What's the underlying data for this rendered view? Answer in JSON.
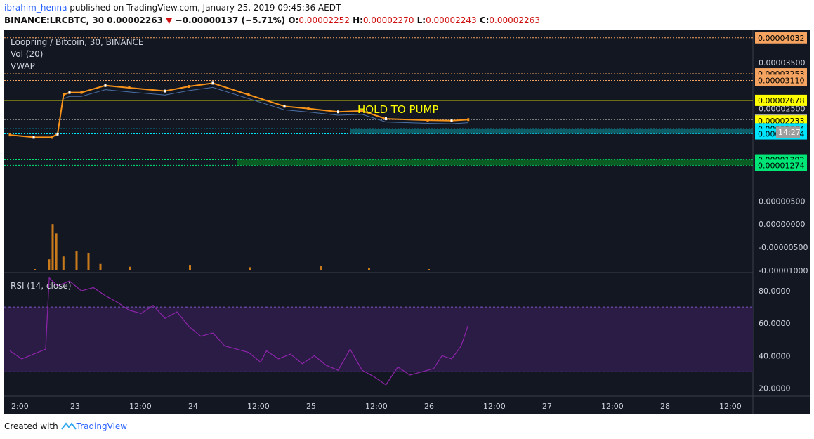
{
  "header": {
    "author": "ibrahim_henna",
    "published_text": "published on TradingView.com, January 25, 2019 09:45:36 AEDT",
    "symbol": "BINANCE:LRCBTC, 30",
    "last": "0.00002263",
    "change": "−0.00000137 (−5.71%)",
    "open_label": "O:",
    "open": "0.00002252",
    "high_label": "H:",
    "high": "0.00002270",
    "low_label": "L:",
    "low": "0.00002243",
    "close_label": "C:",
    "close": "0.00002263"
  },
  "legend": {
    "title": "Loopring / Bitcoin, 30, BINANCE",
    "volume": "Vol (20)",
    "vwap": "VWAP",
    "rsi": "RSI (14, close)"
  },
  "annotation": "HOLD TO PUMP",
  "countdown": "14:27",
  "footer": {
    "created_with": "Created with",
    "brand": "TradingView"
  },
  "colors": {
    "background": "#131722",
    "candle_up": "#ffffff",
    "candle_down": "#f7931a",
    "volume": "#f7931a",
    "vwap": "#4a6fa5",
    "rsi_line": "#8e24aa",
    "rsi_band": "#2a1c45",
    "resistance": "#c9a227",
    "support_blue": "#00bcd4",
    "support_green": "#00c853"
  },
  "chart_data": {
    "type": "candlestick",
    "x_ticks": [
      "2:00",
      "23",
      "12:00",
      "24",
      "12:00",
      "25",
      "12:00",
      "26",
      "12:00",
      "27",
      "12:00",
      "28",
      "12:00"
    ],
    "price_axis": {
      "ticks": [
        "0.00003500",
        "0.00002500",
        "0.00000500",
        "0.00000000",
        "-0.00000500",
        "-0.00001000"
      ],
      "tick_values": [
        3.5e-05,
        2.5e-05,
        5e-06,
        0.0,
        -5e-06,
        -1e-05
      ],
      "ylim": [
        -1e-05,
        4.15e-05
      ]
    },
    "levels": [
      {
        "label": "0.00004032",
        "value": 4.032e-05,
        "color": "#f4a460",
        "style": "dotted"
      },
      {
        "label": "0.00003253",
        "value": 3.253e-05,
        "color": "#f4a460",
        "style": "dotted"
      },
      {
        "label": "0.00003110",
        "value": 3.11e-05,
        "color": "#f4a460",
        "style": "dotted"
      },
      {
        "label": "0.00002678",
        "value": 2.678e-05,
        "color": "#ffff00",
        "style": "solid"
      },
      {
        "label": "0.00002263",
        "value": 2.263e-05,
        "color": "#9e9e9e",
        "style": "dotted"
      },
      {
        "label": "0.00002233",
        "value": 2.233e-05,
        "color": "#ffff00",
        "style": "none"
      },
      {
        "label": "0.00002064",
        "value": 2.064e-05,
        "color": "#00e5ff",
        "style": "dotted"
      },
      {
        "label": "0.00001954",
        "value": 1.954e-05,
        "color": "#00e5ff",
        "style": "dotted"
      },
      {
        "label": "0.00001392",
        "value": 1.392e-05,
        "color": "#00e676",
        "style": "dotted"
      },
      {
        "label": "0.00001274",
        "value": 1.274e-05,
        "color": "#00e676",
        "style": "dotted"
      }
    ],
    "price_series": [
      {
        "day": 22.0,
        "value": 1.93e-05
      },
      {
        "day": 22.2,
        "value": 1.88e-05
      },
      {
        "day": 22.35,
        "value": 1.88e-05
      },
      {
        "day": 22.4,
        "value": 1.95e-05
      },
      {
        "day": 22.45,
        "value": 2.8e-05
      },
      {
        "day": 22.5,
        "value": 2.85e-05
      },
      {
        "day": 22.6,
        "value": 2.85e-05
      },
      {
        "day": 22.8,
        "value": 3e-05
      },
      {
        "day": 23.0,
        "value": 2.95e-05
      },
      {
        "day": 23.3,
        "value": 2.88e-05
      },
      {
        "day": 23.5,
        "value": 2.98e-05
      },
      {
        "day": 23.7,
        "value": 3.05e-05
      },
      {
        "day": 24.0,
        "value": 2.8e-05
      },
      {
        "day": 24.3,
        "value": 2.55e-05
      },
      {
        "day": 24.5,
        "value": 2.5e-05
      },
      {
        "day": 24.75,
        "value": 2.43e-05
      },
      {
        "day": 24.95,
        "value": 2.45e-05
      },
      {
        "day": 25.15,
        "value": 2.28e-05
      },
      {
        "day": 25.5,
        "value": 2.25e-05
      },
      {
        "day": 25.7,
        "value": 2.24e-05
      },
      {
        "day": 25.84,
        "value": 2.263e-05
      }
    ],
    "volume_series": [
      {
        "day": 22.2,
        "value": 3e-07
      },
      {
        "day": 22.32,
        "value": 2.4e-06
      },
      {
        "day": 22.35,
        "value": 1e-05
      },
      {
        "day": 22.38,
        "value": 8e-06
      },
      {
        "day": 22.44,
        "value": 3e-06
      },
      {
        "day": 22.55,
        "value": 4.2e-06
      },
      {
        "day": 22.65,
        "value": 3.8e-06
      },
      {
        "day": 22.75,
        "value": 1.4e-06
      },
      {
        "day": 23.0,
        "value": 8e-07
      },
      {
        "day": 23.5,
        "value": 1.2e-06
      },
      {
        "day": 24.0,
        "value": 7e-07
      },
      {
        "day": 24.6,
        "value": 1e-06
      },
      {
        "day": 25.0,
        "value": 6e-07
      },
      {
        "day": 25.5,
        "value": 3e-07
      }
    ],
    "rsi_axis": {
      "ticks": [
        "80.0000",
        "60.0000",
        "40.0000",
        "20.0000"
      ],
      "tick_values": [
        80,
        60,
        40,
        20
      ],
      "ylim": [
        15,
        90
      ],
      "bands": [
        70,
        30
      ]
    },
    "rsi_series": [
      {
        "day": 22.0,
        "value": 43
      },
      {
        "day": 22.1,
        "value": 38
      },
      {
        "day": 22.2,
        "value": 41
      },
      {
        "day": 22.3,
        "value": 44
      },
      {
        "day": 22.33,
        "value": 88
      },
      {
        "day": 22.4,
        "value": 83
      },
      {
        "day": 22.5,
        "value": 86
      },
      {
        "day": 22.6,
        "value": 80
      },
      {
        "day": 22.7,
        "value": 82
      },
      {
        "day": 22.8,
        "value": 77
      },
      {
        "day": 22.9,
        "value": 73
      },
      {
        "day": 23.0,
        "value": 68
      },
      {
        "day": 23.1,
        "value": 66
      },
      {
        "day": 23.2,
        "value": 71
      },
      {
        "day": 23.3,
        "value": 63
      },
      {
        "day": 23.4,
        "value": 67
      },
      {
        "day": 23.5,
        "value": 58
      },
      {
        "day": 23.6,
        "value": 52
      },
      {
        "day": 23.7,
        "value": 54
      },
      {
        "day": 23.8,
        "value": 46
      },
      {
        "day": 23.9,
        "value": 44
      },
      {
        "day": 24.0,
        "value": 42
      },
      {
        "day": 24.1,
        "value": 36
      },
      {
        "day": 24.15,
        "value": 43
      },
      {
        "day": 24.25,
        "value": 38
      },
      {
        "day": 24.35,
        "value": 41
      },
      {
        "day": 24.45,
        "value": 35
      },
      {
        "day": 24.55,
        "value": 40
      },
      {
        "day": 24.65,
        "value": 34
      },
      {
        "day": 24.75,
        "value": 31
      },
      {
        "day": 24.85,
        "value": 44
      },
      {
        "day": 24.95,
        "value": 31
      },
      {
        "day": 25.05,
        "value": 27
      },
      {
        "day": 25.15,
        "value": 22
      },
      {
        "day": 25.25,
        "value": 33
      },
      {
        "day": 25.35,
        "value": 28
      },
      {
        "day": 25.45,
        "value": 30
      },
      {
        "day": 25.55,
        "value": 32
      },
      {
        "day": 25.62,
        "value": 40
      },
      {
        "day": 25.7,
        "value": 38
      },
      {
        "day": 25.78,
        "value": 46
      },
      {
        "day": 25.84,
        "value": 59
      }
    ]
  }
}
